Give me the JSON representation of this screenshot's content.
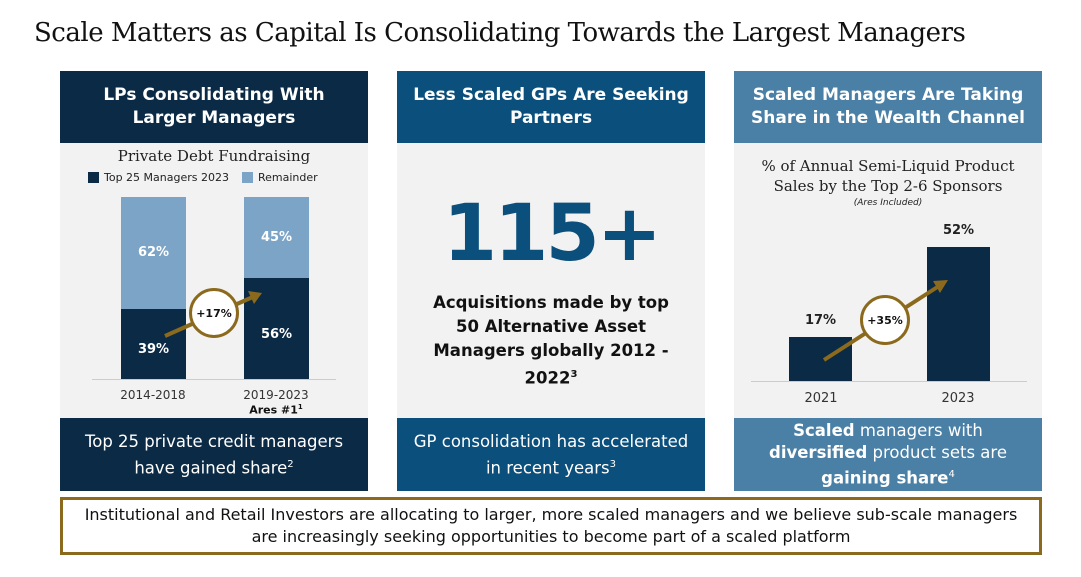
{
  "title": "Scale Matters as Capital Is Consolidating Towards the Largest Managers",
  "colors": {
    "navy": "#0b2a45",
    "mid_blue": "#0b4f7c",
    "steel_blue": "#4a7fa6",
    "light_blue": "#7ba4c7",
    "gold": "#8b6a1e"
  },
  "panels": [
    {
      "header": "LPs Consolidating With Larger Managers",
      "footer": "Top 25 private credit managers have gained share",
      "footer_sup": "2"
    },
    {
      "header": "Less Scaled GPs Are Seeking Partners",
      "big_number": "115+",
      "caption": "Acquisitions made by top 50 Alternative Asset Managers globally 2012 - 2022",
      "caption_sup": "3",
      "footer": "GP consolidation has accelerated in recent years",
      "footer_sup": "3"
    },
    {
      "header": "Scaled Managers Are Taking Share in the Wealth Channel",
      "footer_parts": [
        "Scaled",
        " managers with ",
        "diversified",
        " product sets are ",
        "gaining share"
      ],
      "footer_sup": "4"
    }
  ],
  "bottom_text": "Institutional and Retail Investors are allocating to larger, more scaled managers and we believe sub-scale managers are increasingly seeking opportunities to become part of a scaled platform",
  "chart_data": [
    {
      "type": "bar",
      "stacked": true,
      "title": "Private Debt Fundraising",
      "categories": [
        "2014-2018",
        "2019-2023"
      ],
      "series": [
        {
          "name": "Top 25 Managers 2023",
          "values": [
            39,
            56
          ],
          "labels": [
            "39%",
            "56%"
          ]
        },
        {
          "name": "Remainder",
          "values": [
            62,
            45
          ],
          "labels": [
            "62%",
            "45%"
          ]
        }
      ],
      "annotation": "+17%",
      "sub_label": "Ares #1",
      "sub_label_sup": "1",
      "ylim": [
        0,
        100
      ]
    },
    {
      "type": "bar",
      "title": "% of Annual Semi-Liquid Product Sales by the Top 2-6 Sponsors",
      "subtitle": "(Ares Included)",
      "categories": [
        "2021",
        "2023"
      ],
      "values": [
        17,
        52
      ],
      "labels": [
        "17%",
        "52%"
      ],
      "annotation": "+35%",
      "ylim": [
        0,
        60
      ]
    }
  ]
}
